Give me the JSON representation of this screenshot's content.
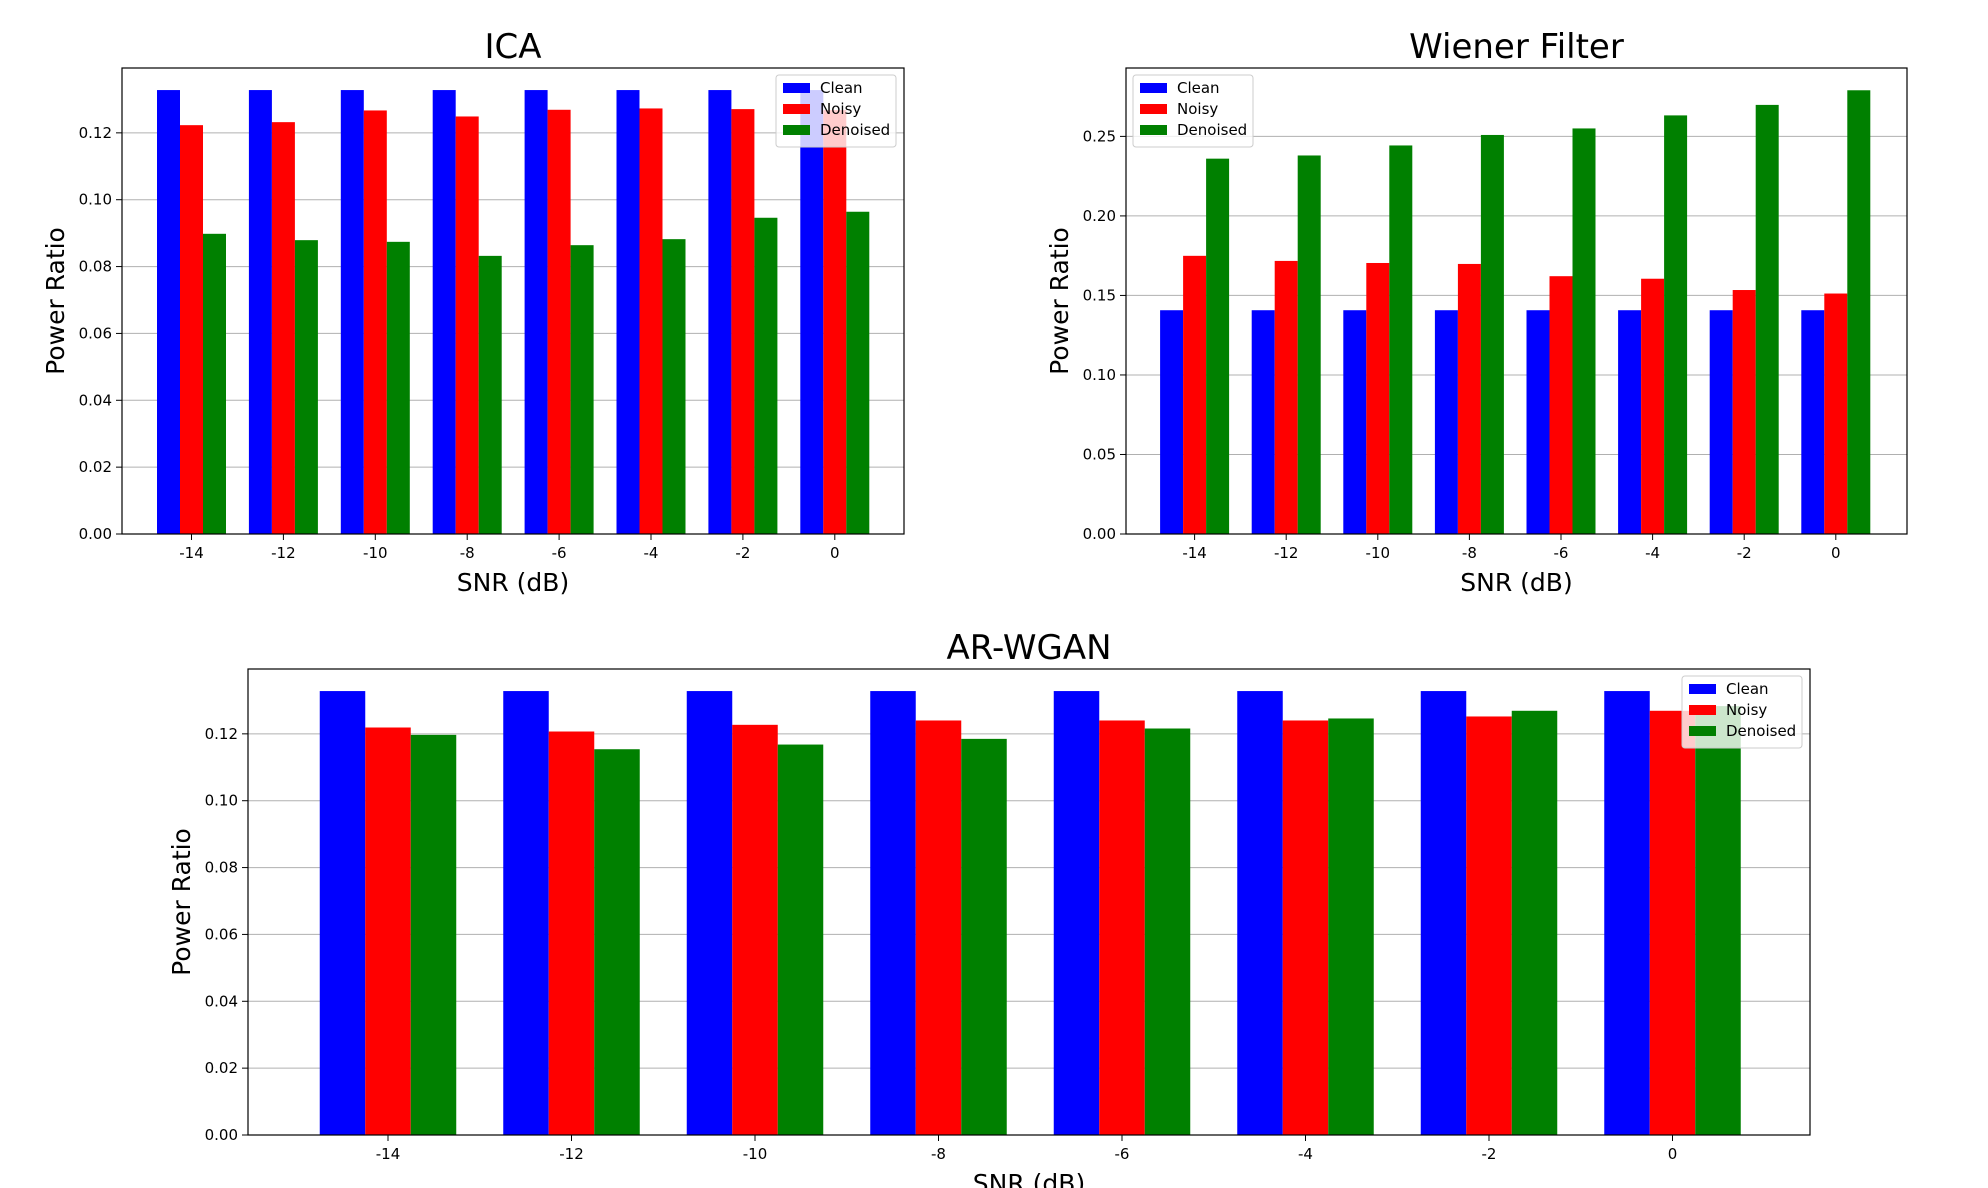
{
  "chart_data": [
    {
      "type": "bar",
      "title": "ICA",
      "xlabel": "SNR (dB)",
      "ylabel": "Power Ratio",
      "categories": [
        "-14",
        "-12",
        "-10",
        "-8",
        "-6",
        "-4",
        "-2",
        "0"
      ],
      "ylim": [
        0,
        0.1394
      ],
      "yticks": [
        "0.00",
        "0.02",
        "0.04",
        "0.06",
        "0.08",
        "0.10",
        "0.12"
      ],
      "grid": "y",
      "legend_position": "top-right",
      "series": [
        {
          "name": "Clean",
          "color": "#0000ff",
          "values": [
            0.1328,
            0.1328,
            0.1328,
            0.1328,
            0.1328,
            0.1328,
            0.1328,
            0.1328
          ]
        },
        {
          "name": "Noisy",
          "color": "#ff0000",
          "values": [
            0.1223,
            0.1232,
            0.1267,
            0.1249,
            0.1269,
            0.1273,
            0.1271,
            0.1268
          ]
        },
        {
          "name": "Denoised",
          "color": "#008000",
          "values": [
            0.0898,
            0.0879,
            0.0874,
            0.0832,
            0.0864,
            0.0882,
            0.0946,
            0.0964
          ]
        }
      ]
    },
    {
      "type": "bar",
      "title": "Wiener Filter",
      "xlabel": "SNR (dB)",
      "ylabel": "Power Ratio",
      "categories": [
        "-14",
        "-12",
        "-10",
        "-8",
        "-6",
        "-4",
        "-2",
        "0"
      ],
      "ylim": [
        0,
        0.293
      ],
      "yticks": [
        "0.00",
        "0.05",
        "0.10",
        "0.15",
        "0.20",
        "0.25"
      ],
      "grid": "y",
      "legend_position": "top-left",
      "series": [
        {
          "name": "Clean",
          "color": "#0000ff",
          "values": [
            0.1407,
            0.1407,
            0.1407,
            0.1407,
            0.1407,
            0.1407,
            0.1407,
            0.1407
          ]
        },
        {
          "name": "Noisy",
          "color": "#ff0000",
          "values": [
            0.1749,
            0.1717,
            0.1704,
            0.1698,
            0.1621,
            0.1605,
            0.1534,
            0.1512
          ]
        },
        {
          "name": "Denoised",
          "color": "#008000",
          "values": [
            0.236,
            0.238,
            0.2443,
            0.2509,
            0.255,
            0.2632,
            0.2698,
            0.279
          ]
        }
      ]
    },
    {
      "type": "bar",
      "title": "AR-WGAN",
      "xlabel": "SNR (dB)",
      "ylabel": "Power Ratio",
      "categories": [
        "-14",
        "-12",
        "-10",
        "-8",
        "-6",
        "-4",
        "-2",
        "0"
      ],
      "ylim": [
        0,
        0.1394
      ],
      "yticks": [
        "0.00",
        "0.02",
        "0.04",
        "0.06",
        "0.08",
        "0.10",
        "0.12"
      ],
      "grid": "y",
      "legend_position": "top-right",
      "series": [
        {
          "name": "Clean",
          "color": "#0000ff",
          "values": [
            0.1328,
            0.1328,
            0.1328,
            0.1328,
            0.1328,
            0.1328,
            0.1328,
            0.1328
          ]
        },
        {
          "name": "Noisy",
          "color": "#ff0000",
          "values": [
            0.1219,
            0.1207,
            0.1227,
            0.124,
            0.124,
            0.124,
            0.1252,
            0.1269
          ]
        },
        {
          "name": "Denoised",
          "color": "#008000",
          "values": [
            0.1197,
            0.1154,
            0.1168,
            0.1185,
            0.1216,
            0.1246,
            0.1269,
            0.1283
          ]
        }
      ]
    }
  ]
}
